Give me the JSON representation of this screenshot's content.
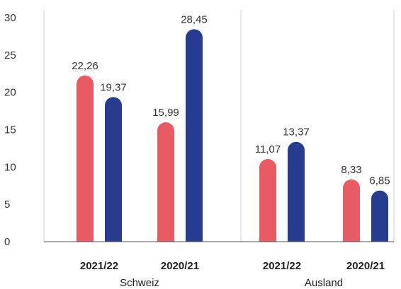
{
  "chart_data": {
    "type": "bar",
    "title": "",
    "xlabel": "",
    "ylabel": "",
    "ylim": [
      0,
      30
    ],
    "yticks": [
      "0",
      "5",
      "10",
      "15",
      "20",
      "25",
      "30"
    ],
    "grid": "vertical",
    "legend": "none",
    "groups": [
      {
        "label": "Schweiz",
        "categories": [
          {
            "label": "2021/22",
            "values": [
              22.26,
              19.37
            ],
            "value_labels": [
              "22,26",
              "19,37"
            ]
          },
          {
            "label": "2020/21",
            "values": [
              15.99,
              28.45
            ],
            "value_labels": [
              "15,99",
              "28,45"
            ]
          }
        ]
      },
      {
        "label": "Ausland",
        "categories": [
          {
            "label": "2021/22",
            "values": [
              11.07,
              13.37
            ],
            "value_labels": [
              "11,07",
              "13,37"
            ]
          },
          {
            "label": "2020/21",
            "values": [
              8.33,
              6.85
            ],
            "value_labels": [
              "8,33",
              "6,85"
            ]
          }
        ]
      }
    ],
    "series_colors": [
      "#e85a64",
      "#253c8f"
    ],
    "grid_color": "#cfcfcf",
    "axis_color": "#555555"
  }
}
